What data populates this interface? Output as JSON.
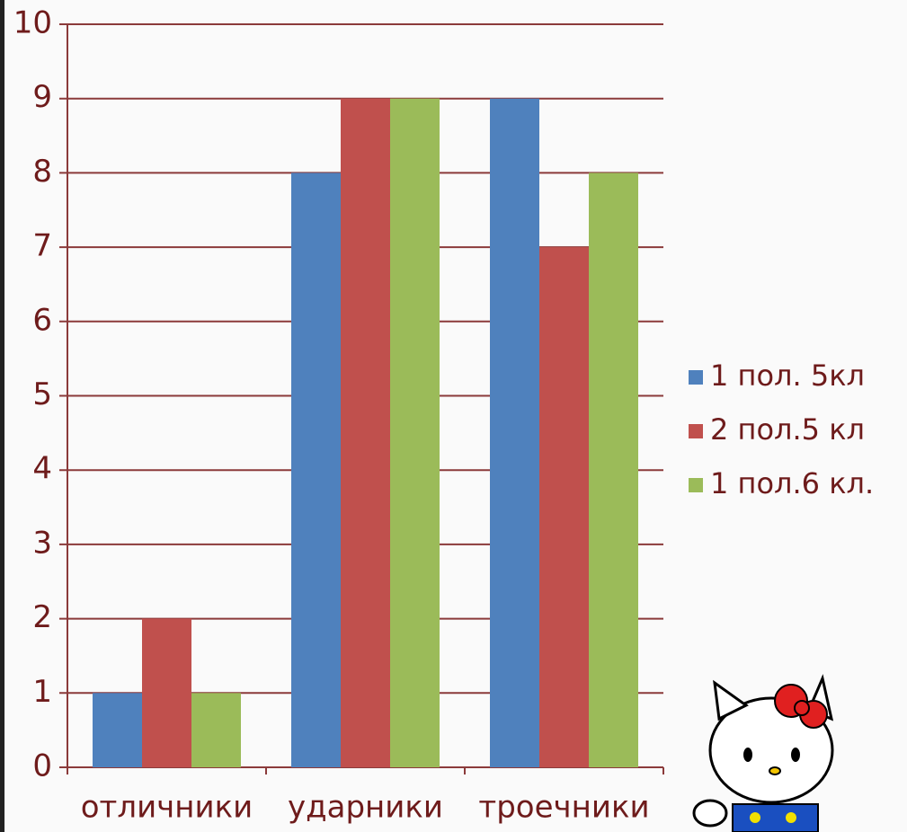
{
  "chart_data": {
    "type": "bar",
    "categories": [
      "отличники",
      "ударники",
      "троечники"
    ],
    "series": [
      {
        "name": "1 пол. 5кл",
        "color": "#4f81bd",
        "values": [
          1,
          8,
          9
        ]
      },
      {
        "name": "2 пол.5 кл",
        "color": "#c0504d",
        "values": [
          2,
          9,
          7
        ]
      },
      {
        "name": "1 пол.6 кл.",
        "color": "#9bbb59",
        "values": [
          1,
          9,
          8
        ]
      }
    ],
    "ylim": [
      0,
      10
    ],
    "yticks": [
      0,
      1,
      2,
      3,
      4,
      5,
      6,
      7,
      8,
      9,
      10
    ],
    "grid": true,
    "legend": "right"
  }
}
